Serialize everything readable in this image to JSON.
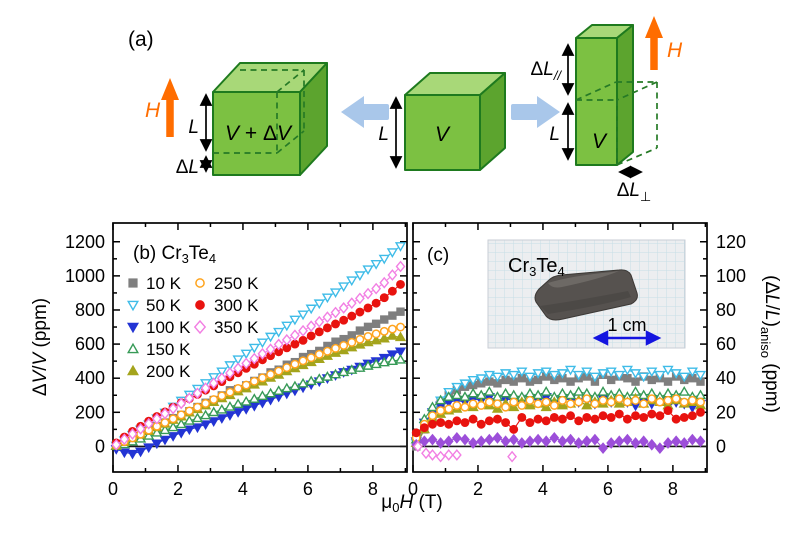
{
  "figure": {
    "panel_a": {
      "label": "(a)",
      "h_label": "H",
      "l_label": "L",
      "dl": {
        "d": "Δ",
        "l": "L"
      },
      "dl_par": {
        "d": "Δ",
        "l": "L",
        "sub": "//"
      },
      "dl_perp": {
        "d": "Δ",
        "l": "L",
        "sub": "⊥"
      },
      "v_plus": {
        "v1": "V",
        "mid": " + Δ",
        "v2": "V"
      },
      "v_mid": "V",
      "v_right": "V"
    },
    "panel_b": {
      "title": {
        "p1": "(b) Cr",
        "s1": "3",
        "p2": "Te",
        "s2": "4"
      }
    },
    "panel_c": {
      "label": "(c)",
      "inset": {
        "name": {
          "p1": "Cr",
          "s1": "3",
          "p2": "Te",
          "s2": "4"
        },
        "scale_label": "1 cm"
      }
    },
    "axes": {
      "xlabel": {
        "p1": "μ",
        "s1": "0",
        "p2": "H",
        "p3": " (T)"
      },
      "ylabel_b": {
        "p1": "Δ",
        "p2": "V",
        "p3": "/",
        "p4": "V",
        "p5": " (ppm)"
      },
      "ylabel_c": {
        "p1": "(Δ",
        "p2": "L",
        "p3": "/",
        "p4": "L",
        "p5": ")",
        "s1": "aniso",
        "p6": " (ppm)"
      }
    },
    "colors": {
      "accent_orange": "#FF6D00",
      "arrow_blue": "#A9C7EA",
      "cube_front": "#7CC142",
      "cube_top": "#A8D878",
      "cube_side": "#5CA42E",
      "cube_edge": "#1E7A1E",
      "scale_blue": "#1414E0"
    }
  },
  "chart_data": [
    {
      "id": "b",
      "type": "scatter",
      "title": "(b) Cr3Te4",
      "xlabel": "μ0H (T)",
      "ylabel": "ΔV/V (ppm)",
      "box": {
        "l": 113,
        "r": 407,
        "t": 223,
        "b": 472
      },
      "xlim": [
        0,
        9.05
      ],
      "ylim": [
        -150,
        1310
      ],
      "x_ticks": [
        0,
        2,
        4,
        6,
        8
      ],
      "x_minor": [
        1,
        3,
        5,
        7,
        9
      ],
      "y_ticks": [
        0,
        200,
        400,
        600,
        800,
        1000,
        1200
      ],
      "y_minor": [
        100,
        300,
        500,
        700,
        900,
        1100
      ],
      "ylab_side": "left",
      "zero_line": true,
      "x_start": 0.1,
      "x_step": 0.25,
      "legend": {
        "cols": [
          [
            0,
            1,
            2,
            3,
            4
          ],
          [
            5,
            6,
            7
          ]
        ],
        "x_marker": [
          133,
          200
        ],
        "x_label": [
          146,
          214
        ],
        "y0": 289,
        "dy": 22
      },
      "series": [
        {
          "name": "10 K",
          "marker": "square",
          "filled": true,
          "color": "#7F7F7F",
          "values": [
            8,
            28,
            52,
            76,
            100,
            118,
            140,
            166,
            185,
            206,
            231,
            256,
            272,
            299,
            329,
            336,
            358,
            384,
            404,
            434,
            450,
            479,
            494,
            524,
            541,
            560,
            589,
            614,
            629,
            651,
            679,
            701,
            719,
            744,
            767,
            790
          ]
        },
        {
          "name": "50 K",
          "marker": "tri-down",
          "filled": false,
          "color": "#3FBCE8",
          "values": [
            5,
            36,
            68,
            99,
            130,
            165,
            199,
            234,
            269,
            304,
            339,
            372,
            407,
            440,
            477,
            511,
            545,
            579,
            610,
            644,
            672,
            709,
            744,
            774,
            809,
            839,
            874,
            904,
            939,
            974,
            1004,
            1039,
            1070,
            1101,
            1139,
            1175
          ]
        },
        {
          "name": "100 K",
          "marker": "tri-down",
          "filled": true,
          "color": "#2334D4",
          "values": [
            -15,
            -35,
            -43,
            -30,
            -5,
            18,
            40,
            61,
            80,
            100,
            112,
            130,
            148,
            166,
            184,
            202,
            220,
            238,
            256,
            274,
            292,
            310,
            328,
            346,
            364,
            382,
            400,
            418,
            436,
            450,
            468,
            486,
            500,
            520,
            540,
            557
          ]
        },
        {
          "name": "150 K",
          "marker": "tri-up",
          "filled": false,
          "color": "#379A57",
          "values": [
            2,
            12,
            28,
            45,
            62,
            80,
            95,
            112,
            130,
            150,
            165,
            182,
            200,
            215,
            232,
            248,
            262,
            278,
            295,
            310,
            325,
            340,
            352,
            368,
            382,
            395,
            408,
            422,
            435,
            448,
            460,
            472,
            482,
            492,
            500,
            508
          ]
        },
        {
          "name": "200 K",
          "marker": "tri-up",
          "filled": true,
          "color": "#A4A41C",
          "values": [
            5,
            25,
            48,
            68,
            90,
            112,
            132,
            155,
            175,
            198,
            218,
            240,
            260,
            282,
            300,
            322,
            340,
            362,
            380,
            402,
            420,
            440,
            458,
            476,
            494,
            512,
            530,
            548,
            563,
            580,
            596,
            610,
            621,
            632,
            648,
            640
          ]
        },
        {
          "name": "250 K",
          "marker": "circle",
          "filled": false,
          "color": "#FFA41E",
          "values": [
            8,
            28,
            50,
            72,
            95,
            118,
            140,
            162,
            185,
            208,
            230,
            252,
            275,
            297,
            318,
            340,
            360,
            382,
            402,
            422,
            442,
            462,
            482,
            502,
            520,
            540,
            558,
            575,
            592,
            610,
            628,
            645,
            660,
            675,
            688,
            700
          ]
        },
        {
          "name": "300 K",
          "marker": "circle",
          "filled": true,
          "color": "#E8130F",
          "values": [
            20,
            55,
            88,
            118,
            148,
            175,
            202,
            230,
            256,
            280,
            305,
            330,
            355,
            380,
            408,
            432,
            458,
            482,
            508,
            532,
            555,
            578,
            600,
            622,
            648,
            672,
            695,
            718,
            740,
            764,
            788,
            812,
            840,
            872,
            910,
            950
          ]
        },
        {
          "name": "350 K",
          "marker": "diamond",
          "filled": false,
          "color": "#F27FE3",
          "values": [
            10,
            42,
            73,
            103,
            133,
            162,
            192,
            222,
            252,
            282,
            312,
            342,
            371,
            400,
            430,
            458,
            487,
            515,
            543,
            570,
            598,
            625,
            652,
            678,
            705,
            731,
            758,
            785,
            812,
            840,
            868,
            896,
            925,
            960,
            1005,
            1055
          ]
        }
      ]
    },
    {
      "id": "c",
      "type": "scatter",
      "title": "(c)",
      "xlabel": "μ0H (T)",
      "ylabel": "(ΔL/L)aniso (ppm)",
      "box": {
        "l": 413,
        "r": 707,
        "t": 223,
        "b": 472
      },
      "xlim": [
        0,
        9.05
      ],
      "ylim": [
        -15,
        131
      ],
      "x_ticks": [
        0,
        2,
        4,
        6,
        8
      ],
      "x_minor": [
        1,
        3,
        5,
        7,
        9
      ],
      "y_ticks": [
        0,
        20,
        40,
        60,
        80,
        100,
        120
      ],
      "y_minor": [
        10,
        30,
        50,
        70,
        90,
        110
      ],
      "ylab_side": "right",
      "zero_line": true,
      "x_start": 0.1,
      "x_step": 0.25,
      "series": [
        {
          "name": "10 K",
          "marker": "square",
          "filled": true,
          "color": "#7F7F7F",
          "values": [
            0,
            10,
            18,
            25,
            30,
            33,
            35,
            36,
            37,
            38,
            37,
            39,
            38,
            40,
            38,
            39,
            41,
            39,
            40,
            38,
            40,
            41,
            38,
            42,
            39,
            41,
            40,
            38,
            41,
            39,
            40,
            38,
            41,
            39,
            40,
            38
          ]
        },
        {
          "name": "50 K",
          "marker": "tri-down",
          "filled": false,
          "color": "#3FBCE8",
          "values": [
            2,
            12,
            20,
            27,
            32,
            35,
            37,
            39,
            40,
            42,
            41,
            43,
            42,
            44,
            41,
            43,
            44,
            42,
            43,
            45,
            42,
            44,
            41,
            43,
            44,
            42,
            45,
            43,
            41,
            44,
            42,
            45,
            43,
            41,
            44,
            42
          ]
        },
        {
          "name": "100 K",
          "marker": "tri-down",
          "filled": true,
          "color": "#2334D4",
          "values": [
            3,
            14,
            20,
            24,
            26,
            27,
            26,
            28,
            27,
            29,
            26,
            28,
            27,
            26,
            28,
            27,
            29,
            26,
            27,
            28,
            26,
            27,
            25,
            28,
            26,
            27,
            26,
            24,
            26,
            25,
            27,
            24,
            26,
            25,
            23,
            25
          ]
        },
        {
          "name": "150 K",
          "marker": "tri-up",
          "filled": false,
          "color": "#379A57",
          "values": [
            4,
            16,
            23,
            27,
            29,
            30,
            29,
            31,
            30,
            32,
            29,
            31,
            30,
            29,
            31,
            30,
            32,
            29,
            31,
            30,
            32,
            31,
            29,
            32,
            30,
            31,
            29,
            32,
            30,
            31,
            29,
            31,
            30,
            32,
            29,
            30
          ]
        },
        {
          "name": "200 K",
          "marker": "tri-up",
          "filled": true,
          "color": "#A4A41C",
          "values": [
            2,
            10,
            16,
            19,
            21,
            22,
            24,
            23,
            25,
            24,
            22,
            25,
            23,
            26,
            24,
            25,
            23,
            26,
            24,
            25,
            27,
            24,
            26,
            25,
            27,
            25,
            26,
            28,
            25,
            27,
            26,
            24,
            27,
            25,
            26,
            24
          ]
        },
        {
          "name": "250 K",
          "marker": "circle",
          "filled": false,
          "color": "#FFA41E",
          "values": [
            5,
            13,
            18,
            21,
            22,
            24,
            23,
            25,
            24,
            26,
            25,
            23,
            26,
            24,
            27,
            25,
            26,
            24,
            27,
            25,
            26,
            28,
            25,
            27,
            26,
            28,
            26,
            27,
            25,
            28,
            26,
            27,
            28,
            26,
            27,
            26
          ]
        },
        {
          "name": "300 K",
          "marker": "circle",
          "filled": true,
          "color": "#E8130F",
          "values": [
            8,
            11,
            13,
            14,
            13,
            15,
            14,
            16,
            13,
            15,
            16,
            14,
            10,
            17,
            14,
            16,
            15,
            17,
            16,
            18,
            15,
            17,
            16,
            18,
            17,
            19,
            16,
            18,
            17,
            19,
            18,
            21,
            16,
            17,
            18,
            20
          ]
        },
        {
          "name": "350 K",
          "marker": "diamond",
          "filled": true,
          "color": "#9C4FD9",
          "values": [
            1,
            3,
            4,
            2,
            3,
            5,
            4,
            2,
            3,
            4,
            5,
            3,
            4,
            2,
            3,
            4,
            3,
            5,
            3,
            4,
            2,
            3,
            4,
            -1,
            2,
            3,
            4,
            2,
            3,
            1,
            -1,
            2,
            3,
            2,
            4,
            3
          ]
        },
        {
          "name": "350 K (open)",
          "marker": "diamond",
          "filled": false,
          "color": "#F27FE3",
          "line": false,
          "points": [
            [
              0.15,
              0
            ],
            [
              0.4,
              -4
            ],
            [
              0.6,
              -5
            ],
            [
              0.85,
              -6
            ],
            [
              1.1,
              -5
            ],
            [
              1.35,
              -5
            ],
            [
              3.05,
              -6
            ]
          ]
        }
      ]
    }
  ]
}
